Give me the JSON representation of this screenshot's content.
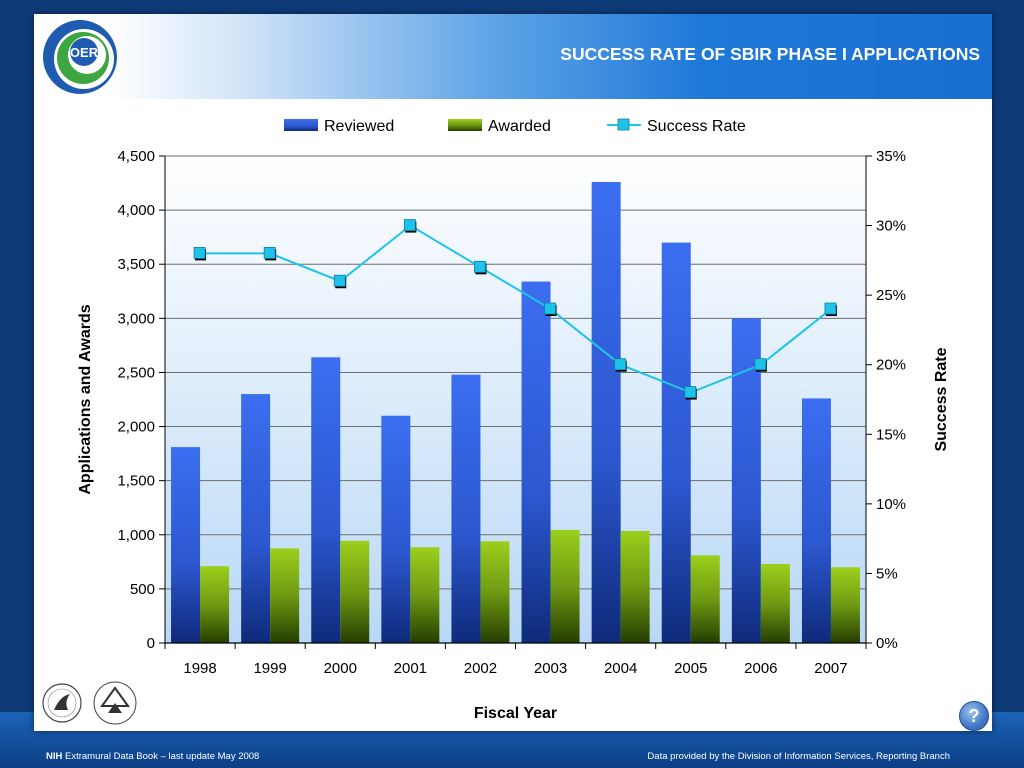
{
  "header": {
    "title": "SUCCESS RATE OF SBIR PHASE I APPLICATIONS",
    "logo_text": "OER"
  },
  "help_label": "?",
  "footer": {
    "left_bold": "NIH",
    "left_text": " Extramural Data Book – last update May 2008",
    "right_text": "Data provided by the Division of Information Services, Reporting Branch"
  },
  "colors": {
    "reviewed": "#2f62e0",
    "awarded": "#8fc21a",
    "success_rate": "#1fc3ea",
    "header_blue": "#1a6fd0",
    "page_bg": "#0e3a78"
  },
  "chart_data": {
    "type": "bar",
    "xlabel": "Fiscal Year",
    "ylabel": "Applications and Awards",
    "y2label": "Success Rate",
    "categories": [
      "1998",
      "1999",
      "2000",
      "2001",
      "2002",
      "2003",
      "2004",
      "2005",
      "2006",
      "2007"
    ],
    "series": [
      {
        "name": "Reviewed",
        "type": "bar",
        "axis": "left",
        "values": [
          1810,
          2300,
          2640,
          2100,
          2480,
          3340,
          4260,
          3700,
          3000,
          2260
        ]
      },
      {
        "name": "Awarded",
        "type": "bar",
        "axis": "left",
        "values": [
          710,
          875,
          945,
          885,
          940,
          1045,
          1035,
          810,
          730,
          700
        ]
      },
      {
        "name": "Success Rate",
        "type": "line",
        "axis": "right",
        "values": [
          28,
          28,
          26,
          30,
          27,
          24,
          20,
          18,
          20,
          24
        ]
      }
    ],
    "ylim": [
      0,
      4500
    ],
    "y2lim": [
      0,
      35
    ],
    "yticks": [
      "0",
      "500",
      "1,000",
      "1,500",
      "2,000",
      "2,500",
      "3,000",
      "3,500",
      "4,000",
      "4,500"
    ],
    "y2ticks": [
      "0%",
      "5%",
      "10%",
      "15%",
      "20%",
      "25%",
      "30%",
      "35%"
    ],
    "legend_position": "top",
    "grid": true
  }
}
